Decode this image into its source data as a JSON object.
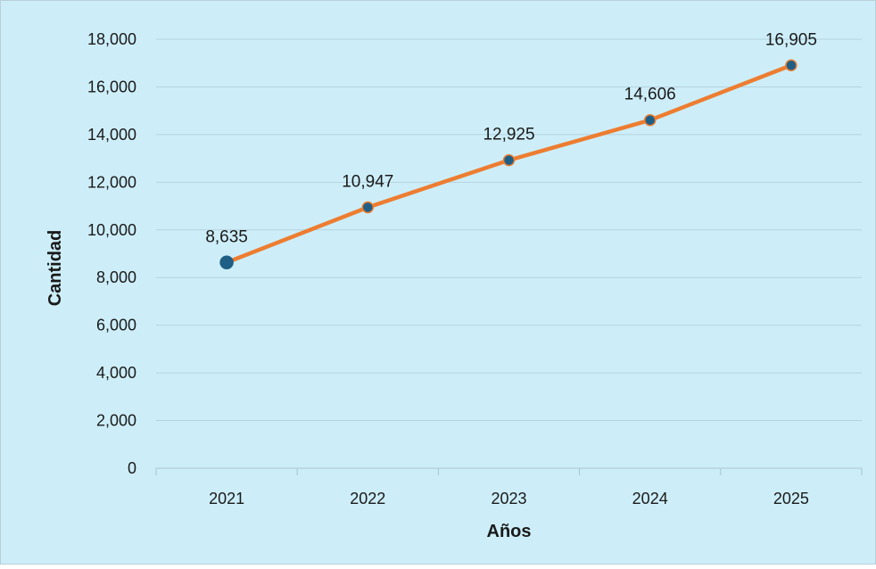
{
  "colors": {
    "background": "#cdeef9",
    "border": "#b9cfd9",
    "gridline": "#b5d2de",
    "axis": "#a8c4d0",
    "line": "#ed7d31",
    "marker_fill": "#1f5f86",
    "marker_stroke": "#ed7d31"
  },
  "chart_data": {
    "type": "line",
    "categories": [
      "2021",
      "2022",
      "2023",
      "2024",
      "2025"
    ],
    "series": [
      {
        "values": [
          8635,
          10947,
          12925,
          14606,
          16905
        ],
        "data_labels": [
          "8,635",
          "10,947",
          "12,925",
          "14,606",
          "16,905"
        ]
      }
    ],
    "xlabel": "Años",
    "ylabel": "Cantidad",
    "ylim": [
      0,
      18000
    ],
    "yticks": [
      0,
      2000,
      4000,
      6000,
      8000,
      10000,
      12000,
      14000,
      16000,
      18000
    ],
    "ytick_labels": [
      "0",
      "2,000",
      "4,000",
      "6,000",
      "8,000",
      "10,000",
      "12,000",
      "14,000",
      "16,000",
      "18,000"
    ],
    "grid": true,
    "legend": "none"
  }
}
